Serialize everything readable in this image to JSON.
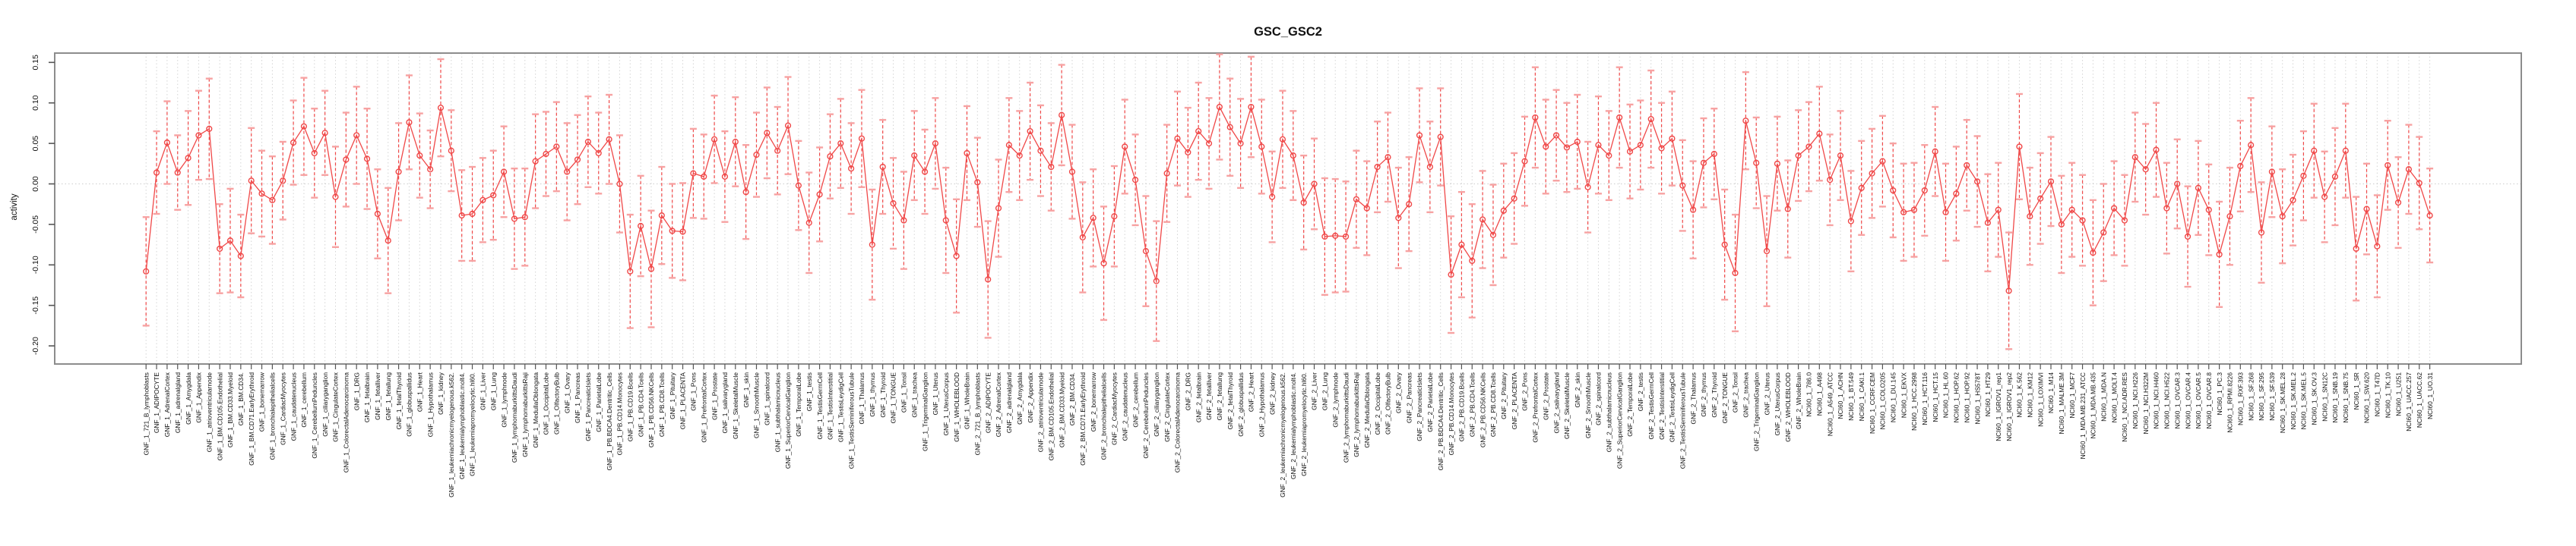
{
  "title": "GSC_GSC2",
  "ylabel": "activity",
  "chart_data": {
    "type": "line",
    "subtype": "points-with-error-bars",
    "title": "GSC_GSC2",
    "xlabel": "",
    "ylabel": "activity",
    "ylim": [
      -0.222,
      0.161
    ],
    "yticks": [
      0.15,
      0.1,
      0.05,
      0.0,
      -0.05,
      -0.1,
      -0.15,
      -0.2
    ],
    "y_tick_labels": [
      "0.15",
      "0.10",
      "0.05",
      "0.00",
      "-0.05",
      "-0.10",
      "-0.15",
      "-0.20"
    ],
    "grid": "vertical dotted line at every category; horizontal dotted line at 0",
    "legend_position": "none",
    "marker": "open-circle",
    "colors": {
      "series": "#f04848",
      "error_caps": "#f7a2a2",
      "frame": "#8c8c8c",
      "grid": "#d4d4d4",
      "zero_line": "#cccccc",
      "tick": "#555555",
      "text": "#111111"
    },
    "categories": [
      "GNF_1_721_B_lymphoblasts",
      "GNF_1_ADIPOCYTE",
      "GNF_1_AdrenalCortex",
      "GNF_1_adrenalgland",
      "GNF_1_Amygdala",
      "GNF_1_Appendix",
      "GNF_1_atrioventricularnode",
      "GNF_1_BM.CD105.Endothelial",
      "GNF_1_BM.CD33.Myeloid",
      "GNF_1_BM.CD34.",
      "GNF_1_BM.CD71.EarlyErythroid",
      "GNF_1_bonemarrow",
      "GNF_1_bronchialepithelialcells",
      "GNF_1_CardiacMyocytes",
      "GNF_1_caudatenucleus",
      "GNF_1_cerebellum",
      "GNF_1_CerebellumPeduncles",
      "GNF_1_ciliaryganglion",
      "GNF_1_CingulateCortex",
      "GNF_1_ColorectalAdenocarcinoma",
      "GNF_1_DRG",
      "GNF_1_fetalbrain",
      "GNF_1_fetalliver",
      "GNF_1_fetallung",
      "GNF_1_fetalThyroid",
      "GNF_1_globuspallidus",
      "GNF_1_Heart",
      "GNF_1_Hypothalamus",
      "GNF_1_kidney",
      "GNF_1_leukemiachronicmyelogenous.k562.",
      "GNF_1_leukemialymphoblastic.molt4.",
      "GNF_1_leukemiapromyelocytic.hl60.",
      "GNF_1_Liver",
      "GNF_1_Lung",
      "GNF_1_lymphnode",
      "GNF_1_lymphomaburkittsDaudi",
      "GNF_1_lymphomaburkittsRaji",
      "GNF_1_MedullaOblongata",
      "GNF_1_OccipitalLobe",
      "GNF_1_OlfactoryBulb",
      "GNF_1_Ovary",
      "GNF_1_Pancreas",
      "GNF_1_PancreaticIslets",
      "GNF_1_ParietalLobe",
      "GNF_1_PB.BDCA4.Dentritic_Cells",
      "GNF_1_PB.CD14.Monocytes",
      "GNF_1_PB.CD19.Bcells",
      "GNF_1_PB.CD4.Tcells",
      "GNF_1_PB.CD56.NKCells",
      "GNF_1_PB.CD8.Tcells",
      "GNF_1_Pituitary",
      "GNF_1_PLACENTA",
      "GNF_1_Pons",
      "GNF_1_PrefrontalCortex",
      "GNF_1_Prostate",
      "GNF_1_salivarygland",
      "GNF_1_SkeletalMuscle",
      "GNF_1_skin",
      "GNF_1_SmoothMuscle",
      "GNF_1_spinalcord",
      "GNF_1_subthalamicnucleus",
      "GNF_1_SuperiorCervicalGanglion",
      "GNF_1_TemporalLobe",
      "GNF_1_testis",
      "GNF_1_TestisGermCell",
      "GNF_1_TestisInterstitial",
      "GNF_1_TestisLeydigCell",
      "GNF_1_TestisSeminiferousTubule",
      "GNF_1_Thalamus",
      "GNF_1_thymus",
      "GNF_1_Thyroid",
      "GNF_1_TONGUE",
      "GNF_1_Tonsil",
      "GNF_1_trachea",
      "GNF_1_TrigeminalGanglion",
      "GNF_1_Uterus",
      "GNF_1_UterusCorpus",
      "GNF_1_WHOLEBLOOD",
      "GNF_1_WholeBrain",
      "GNF_2_721_B_lymphoblasts",
      "GNF_2_ADIPOCYTE",
      "GNF_2_AdrenalCortex",
      "GNF_2_adrenalgland",
      "GNF_2_Amygdala",
      "GNF_2_Appendix",
      "GNF_2_atrioventricularnode",
      "GNF_2_BM.CD105.Endothelial",
      "GNF_2_BM.CD33.Myeloid",
      "GNF_2_BM.CD34.",
      "GNF_2_BM.CD71.EarlyErythroid",
      "GNF_2_bonemarrow",
      "GNF_2_bronchialepithelialcells",
      "GNF_2_CardiacMyocytes",
      "GNF_2_caudatenucleus",
      "GNF_2_cerebellum",
      "GNF_2_CerebellumPeduncles",
      "GNF_2_ciliaryganglion",
      "GNF_2_CingulateCortex",
      "GNF_2_ColorectalAdenocarcinoma",
      "GNF_2_DRG",
      "GNF_2_fetalbrain",
      "GNF_2_fetalliver",
      "GNF_2_fetallung",
      "GNF_2_fetalThyroid",
      "GNF_2_globuspallidus",
      "GNF_2_Heart",
      "GNF_2_Hypothalamus",
      "GNF_2_kidney",
      "GNF_2_leukemiachronicmyelogenous.k562.",
      "GNF_2_leukemialymphoblastic.molt4.",
      "GNF_2_leukemiapromyelocytic.hl60.",
      "GNF_2_Liver",
      "GNF_2_Lung",
      "GNF_2_lymphnode",
      "GNF_2_lymphomaburkittsDaudi",
      "GNF_2_lymphomaburkittsRaji",
      "GNF_2_MedullaOblongata",
      "GNF_2_OccipitalLobe",
      "GNF_2_OlfactoryBulb",
      "GNF_2_Ovary",
      "GNF_2_Pancreas",
      "GNF_2_PancreaticIslets",
      "GNF_2_ParietalLobe",
      "GNF_2_PB.BDCA4.Dentritic_Cells",
      "GNF_2_PB.CD14.Monocytes",
      "GNF_2_PB.CD19.Bcells",
      "GNF_2_PB.CD4.Tcells",
      "GNF_2_PB.CD56.NKCells",
      "GNF_2_PB.CD8.Tcells",
      "GNF_2_Pituitary",
      "GNF_2_PLACENTA",
      "GNF_2_Pons",
      "GNF_2_PrefrontalCortex",
      "GNF_2_Prostate",
      "GNF_2_salivarygland",
      "GNF_2_SkeletalMuscle",
      "GNF_2_skin",
      "GNF_2_SmoothMuscle",
      "GNF_2_spinalcord",
      "GNF_2_subthalamicnucleus",
      "GNF_2_SuperiorCervicalGanglion",
      "GNF_2_TemporalLobe",
      "GNF_2_testis",
      "GNF_2_TestisGermCell",
      "GNF_2_TestisInterstitial",
      "GNF_2_TestisLeydigCell",
      "GNF_2_TestisSeminiferousTubule",
      "GNF_2_Thalamus",
      "GNF_2_thymus",
      "GNF_2_Thyroid",
      "GNF_2_TONGUE",
      "GNF_2_Tonsil",
      "GNF_2_trachea",
      "GNF_2_TrigeminalGanglion",
      "GNF_2_Uterus",
      "GNF_2_UterusCorpus",
      "GNF_2_WHOLEBLOOD",
      "GNF_2_WholeBrain",
      "NCI60_1_786.0",
      "NCI60_1_A498",
      "NCI60_1_A549_ATCC",
      "NCI60_1_ACHN",
      "NCI60_1_BT.549",
      "NCI60_1_CAKI.1",
      "NCI60_1_CCRF.CEM",
      "NCI60_1_COLO205",
      "NCI60_1_DU.145",
      "NCI60_1_EKVX",
      "NCI60_1_HCC.2998",
      "NCI60_1_HCT.116",
      "NCI60_1_HCT.15",
      "NCI60_1_HL.60",
      "NCI60_1_HOP.62",
      "NCI60_1_HOP.92",
      "NCI60_1_HS578T",
      "NCI60_1_HT29",
      "NCI60_1_IGROV1_rep1",
      "NCI60_1_IGROV1_rep2",
      "NCI60_1_K.562",
      "NCI60_1_KM12",
      "NCI60_1_LOXIMVI",
      "NCI60_1_M14",
      "NCI60_1_MALME.3M",
      "NCI60_1_MCF7",
      "NCI60_1_MDA.MB.231_ATCC",
      "NCI60_1_MDA.MB.435",
      "NCI60_1_MDA.N",
      "NCI60_1_MOLT.4",
      "NCI60_1_NCI.ADR.RES",
      "NCI60_1_NCI.H226",
      "NCI60_1_NCI.H322M",
      "NCI60_1_NCI.H460",
      "NCI60_1_NCI.H522",
      "NCI60_1_OVCAR.3",
      "NCI60_1_OVCAR.4",
      "NCI60_1_OVCAR.5",
      "NCI60_1_OVCAR.8",
      "NCI60_1_PC.3",
      "NCI60_1_RPMI.8226",
      "NCI60_1_RXF.393",
      "NCI60_1_SF.268",
      "NCI60_1_SF.295",
      "NCI60_1_SF.539",
      "NCI60_1_SK.MEL.28",
      "NCI60_1_SK.MEL.2",
      "NCI60_1_SK.MEL.5",
      "NCI60_1_SK.OV.3",
      "NCI60_1_SN12C",
      "NCI60_1_SNB.19",
      "NCI60_1_SNB.75",
      "NCI60_1_SR",
      "NCI60_1_SW.620",
      "NCI60_1_T47D",
      "NCI60_1_TK.10",
      "NCI60_1_U251",
      "NCI60_1_UACC.257",
      "NCI60_1_UACC.62",
      "NCI60_1_UO.31"
    ],
    "values": [
      -0.108,
      0.014,
      0.051,
      0.014,
      0.032,
      0.06,
      0.068,
      -0.08,
      -0.07,
      -0.089,
      0.004,
      -0.012,
      -0.02,
      0.004,
      0.051,
      0.071,
      0.038,
      0.063,
      -0.016,
      0.03,
      0.06,
      0.031,
      -0.037,
      -0.07,
      0.015,
      0.076,
      0.035,
      0.018,
      0.094,
      0.041,
      -0.039,
      -0.037,
      -0.02,
      -0.014,
      0.015,
      -0.043,
      -0.041,
      0.028,
      0.037,
      0.046,
      0.015,
      0.03,
      0.052,
      0.038,
      0.055,
      0.0,
      -0.108,
      -0.052,
      -0.105,
      -0.039,
      -0.058,
      -0.059,
      0.013,
      0.009,
      0.055,
      0.009,
      0.052,
      -0.01,
      0.036,
      0.063,
      0.041,
      0.072,
      -0.002,
      -0.048,
      -0.013,
      0.034,
      0.05,
      0.019,
      0.056,
      -0.075,
      0.021,
      -0.024,
      -0.045,
      0.035,
      0.015,
      0.05,
      -0.045,
      -0.089,
      0.038,
      0.002,
      -0.118,
      -0.03,
      0.048,
      0.035,
      0.065,
      0.041,
      0.021,
      0.085,
      0.015,
      -0.066,
      -0.042,
      -0.098,
      -0.04,
      0.046,
      0.005,
      -0.083,
      -0.12,
      0.013,
      0.056,
      0.039,
      0.065,
      0.05,
      0.095,
      0.07,
      0.05,
      0.095,
      0.046,
      -0.016,
      0.055,
      0.035,
      -0.023,
      0.0,
      -0.065,
      -0.064,
      -0.065,
      -0.019,
      -0.03,
      0.021,
      0.033,
      -0.042,
      -0.025,
      0.06,
      0.021,
      0.058,
      -0.112,
      -0.075,
      -0.095,
      -0.044,
      -0.063,
      -0.033,
      -0.018,
      0.028,
      0.082,
      0.046,
      0.06,
      0.045,
      0.052,
      -0.004,
      0.048,
      0.035,
      0.082,
      0.04,
      0.048,
      0.08,
      0.044,
      0.056,
      -0.002,
      -0.032,
      0.026,
      0.037,
      -0.075,
      -0.11,
      0.078,
      0.026,
      -0.083,
      0.025,
      -0.031,
      0.035,
      0.046,
      0.062,
      0.005,
      0.035,
      -0.046,
      -0.005,
      0.013,
      0.028,
      -0.008,
      -0.035,
      -0.032,
      -0.008,
      0.04,
      -0.035,
      -0.012,
      0.023,
      0.003,
      -0.048,
      -0.032,
      -0.132,
      0.046,
      -0.04,
      -0.018,
      0.003,
      -0.05,
      -0.032,
      -0.045,
      -0.085,
      -0.06,
      -0.03,
      -0.045,
      0.033,
      0.018,
      0.042,
      -0.03,
      0.0,
      -0.065,
      -0.005,
      -0.032,
      -0.087,
      -0.04,
      0.022,
      0.048,
      -0.06,
      0.015,
      -0.04,
      -0.02,
      0.01,
      0.041,
      -0.016,
      0.009,
      0.041,
      -0.08,
      -0.031,
      -0.077,
      0.023,
      -0.023,
      0.018,
      0.001,
      -0.039
    ],
    "errors": [
      0.067,
      0.051,
      0.051,
      0.046,
      0.058,
      0.055,
      0.062,
      0.055,
      0.064,
      0.051,
      0.065,
      0.053,
      0.054,
      0.048,
      0.052,
      0.06,
      0.055,
      0.052,
      0.062,
      0.058,
      0.06,
      0.062,
      0.055,
      0.065,
      0.06,
      0.058,
      0.052,
      0.048,
      0.06,
      0.05,
      0.056,
      0.058,
      0.052,
      0.055,
      0.056,
      0.062,
      0.06,
      0.058,
      0.052,
      0.055,
      0.06,
      0.055,
      0.056,
      0.05,
      0.055,
      0.06,
      0.07,
      0.062,
      0.072,
      0.06,
      0.058,
      0.06,
      0.055,
      0.052,
      0.054,
      0.056,
      0.055,
      0.058,
      0.052,
      0.056,
      0.054,
      0.06,
      0.055,
      0.062,
      0.058,
      0.052,
      0.055,
      0.056,
      0.06,
      0.068,
      0.058,
      0.056,
      0.06,
      0.055,
      0.052,
      0.056,
      0.065,
      0.07,
      0.058,
      0.055,
      0.072,
      0.06,
      0.058,
      0.055,
      0.06,
      0.056,
      0.054,
      0.062,
      0.058,
      0.068,
      0.06,
      0.07,
      0.062,
      0.058,
      0.056,
      0.068,
      0.074,
      0.06,
      0.058,
      0.055,
      0.06,
      0.056,
      0.065,
      0.06,
      0.055,
      0.062,
      0.058,
      0.056,
      0.06,
      0.055,
      0.058,
      0.056,
      0.072,
      0.07,
      0.068,
      0.06,
      0.058,
      0.056,
      0.055,
      0.062,
      0.058,
      0.058,
      0.056,
      0.06,
      0.072,
      0.065,
      0.07,
      0.06,
      0.062,
      0.058,
      0.056,
      0.055,
      0.062,
      0.058,
      0.056,
      0.055,
      0.058,
      0.056,
      0.06,
      0.055,
      0.062,
      0.058,
      0.055,
      0.06,
      0.056,
      0.058,
      0.056,
      0.06,
      0.055,
      0.056,
      0.068,
      0.072,
      0.06,
      0.056,
      0.068,
      0.058,
      0.06,
      0.056,
      0.055,
      0.058,
      0.056,
      0.055,
      0.062,
      0.058,
      0.055,
      0.056,
      0.058,
      0.06,
      0.058,
      0.056,
      0.055,
      0.06,
      0.058,
      0.056,
      0.056,
      0.06,
      0.058,
      0.072,
      0.065,
      0.06,
      0.056,
      0.055,
      0.06,
      0.058,
      0.056,
      0.065,
      0.06,
      0.058,
      0.056,
      0.055,
      0.056,
      0.058,
      0.056,
      0.055,
      0.062,
      0.058,
      0.056,
      0.065,
      0.06,
      0.056,
      0.058,
      0.062,
      0.056,
      0.058,
      0.056,
      0.055,
      0.058,
      0.056,
      0.06,
      0.058,
      0.064,
      0.056,
      0.063,
      0.055,
      0.056,
      0.055,
      0.057,
      0.058
    ]
  }
}
